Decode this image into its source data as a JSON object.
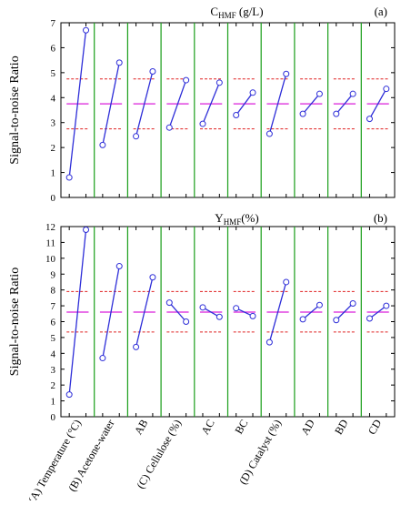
{
  "chart_data": [
    {
      "type": "line",
      "panel_tag": "(a)",
      "title_main": "C",
      "title_sub": "HMF",
      "title_unit": " (g/L)",
      "ylabel": "Signal-to-noise Ratio",
      "ylim": [
        0,
        7
      ],
      "yticks": [
        "0",
        "1",
        "2",
        "3",
        "4",
        "5",
        "6",
        "7"
      ],
      "mean_line": 3.75,
      "limit_lines": [
        4.75,
        2.75
      ],
      "categories": [
        "(A) Temperature (°C)",
        "(B) Acetone-water",
        "AB",
        "(C) Cellulose (%)",
        "AC",
        "BC",
        "(D) Catalyst (%)",
        "AD",
        "BD",
        "CD"
      ],
      "series": [
        {
          "values": [
            [
              0.8,
              6.7
            ],
            [
              2.1,
              5.4
            ],
            [
              2.45,
              5.05
            ],
            [
              2.8,
              4.7
            ],
            [
              2.95,
              4.6
            ],
            [
              3.3,
              4.2
            ],
            [
              2.55,
              4.95
            ],
            [
              3.35,
              4.15
            ],
            [
              3.35,
              4.15
            ],
            [
              3.15,
              4.35
            ]
          ]
        }
      ]
    },
    {
      "type": "line",
      "panel_tag": "(b)",
      "title_main": "Y",
      "title_sub": "HMF",
      "title_unit": "(%)",
      "ylabel": "Signal-to-noise Ratio",
      "ylim": [
        0,
        12
      ],
      "yticks": [
        "0",
        "1",
        "2",
        "3",
        "4",
        "5",
        "6",
        "7",
        "8",
        "9",
        "10",
        "11",
        "12"
      ],
      "mean_line": 6.6,
      "limit_lines": [
        7.9,
        5.35
      ],
      "categories": [
        "(A) Temperature (°C)",
        "(B) Acetone-water",
        "AB",
        "(C) Cellulose (%)",
        "AC",
        "BC",
        "(D) Catalyst (%)",
        "AD",
        "BD",
        "CD"
      ],
      "series": [
        {
          "values": [
            [
              1.4,
              11.8
            ],
            [
              3.7,
              9.5
            ],
            [
              4.4,
              8.8
            ],
            [
              7.2,
              6.0
            ],
            [
              6.9,
              6.3
            ],
            [
              6.85,
              6.35
            ],
            [
              4.7,
              8.5
            ],
            [
              6.15,
              7.05
            ],
            [
              6.1,
              7.15
            ],
            [
              6.2,
              7.0
            ]
          ]
        }
      ]
    }
  ],
  "colors": {
    "series": "#2e2ed8",
    "mean": "#e043e0",
    "limits": "#e02020",
    "separators": "#1a9e1a",
    "axis": "#000000"
  }
}
